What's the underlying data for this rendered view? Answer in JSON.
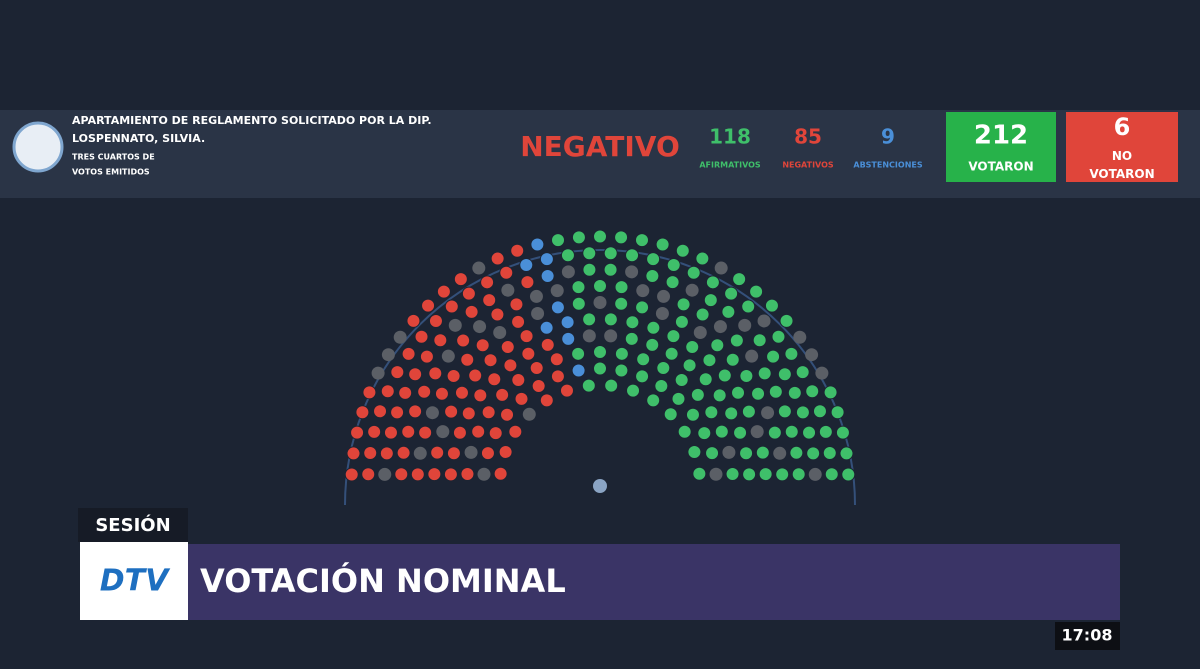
{
  "header": {
    "title_lines": [
      "APARTAMIENTO DE REGLAMENTO SOLICITADO POR LA DIP.",
      "LOSPENNATO, SILVIA."
    ],
    "majority_lines": [
      "TRES CUARTOS DE",
      "VOTOS EMITIDOS"
    ],
    "result": "NEGATIVO"
  },
  "vote": {
    "tallies": [
      {
        "value": 118,
        "label": "AFIRMATIVOS",
        "color": "#3fbf6a"
      },
      {
        "value": 85,
        "label": "NEGATIVOS",
        "color": "#e0453a"
      },
      {
        "value": 9,
        "label": "ABSTENCIONES",
        "color": "#4a8fd8"
      }
    ],
    "voted": {
      "value": 212,
      "label": "VOTARON"
    },
    "not_voted": {
      "value": 6,
      "label": "NO VOTARON"
    }
  },
  "lower_third": {
    "tag": "SESIÓN",
    "logo": "DTV",
    "headline": "VOTACIÓN NOMINAL",
    "clock": "17:08"
  }
}
